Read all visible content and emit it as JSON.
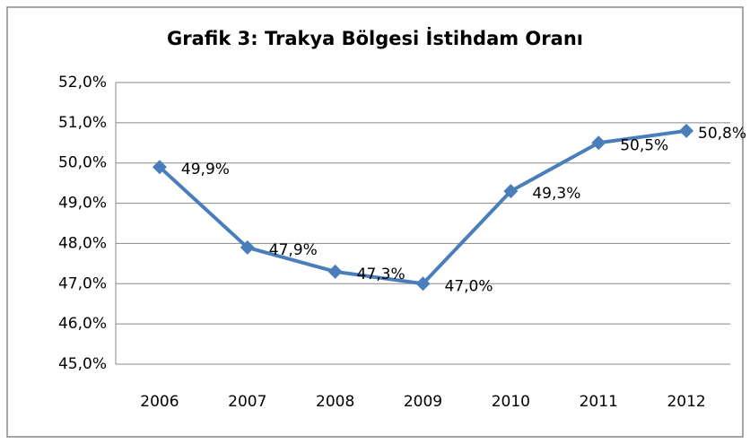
{
  "chart_data": {
    "type": "line",
    "title": "Grafik 3: Trakya Bölgesi İstihdam Oranı",
    "categories": [
      "2006",
      "2007",
      "2008",
      "2009",
      "2010",
      "2011",
      "2012"
    ],
    "series": [
      {
        "name": "İstihdam Oranı",
        "color": "#4a7ebb",
        "values": [
          49.9,
          47.9,
          47.3,
          47.0,
          49.3,
          50.5,
          50.8
        ],
        "value_labels": [
          "49,9%",
          "47,9%",
          "47,3%",
          "47,0%",
          "49,3%",
          "50,5%",
          "50,8%"
        ]
      }
    ],
    "ylim": [
      45,
      52
    ],
    "yticks": [
      {
        "value": 45,
        "label": "45,0%"
      },
      {
        "value": 46,
        "label": "46,0%"
      },
      {
        "value": 47,
        "label": "47,0%"
      },
      {
        "value": 48,
        "label": "48,0%"
      },
      {
        "value": 49,
        "label": "49,0%"
      },
      {
        "value": 50,
        "label": "50,0%"
      },
      {
        "value": 51,
        "label": "51,0%"
      },
      {
        "value": 52,
        "label": "52,0%"
      }
    ],
    "grid": true
  }
}
